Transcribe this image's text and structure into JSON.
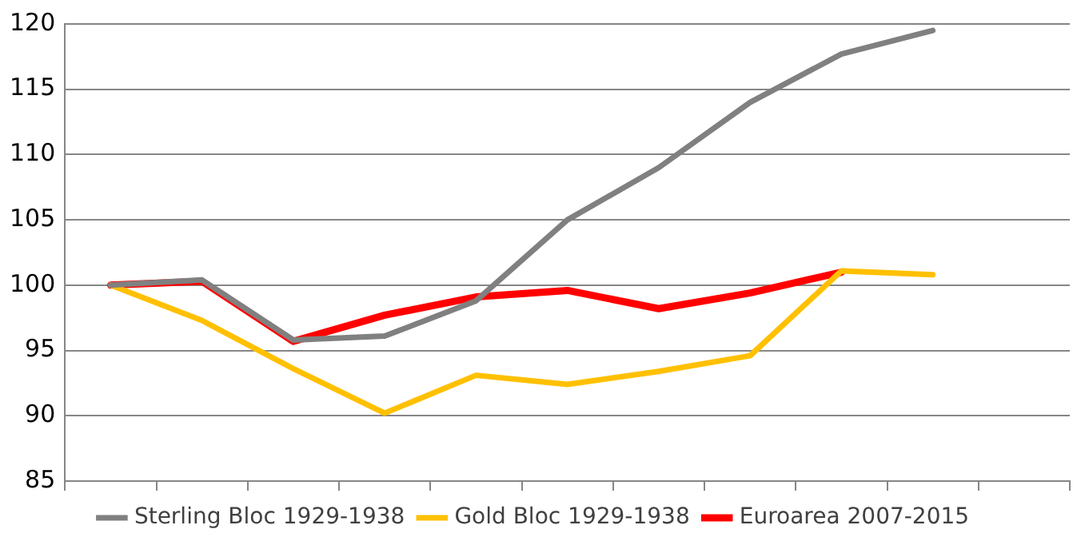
{
  "chart_data": {
    "type": "line",
    "categories": [
      null,
      null,
      null,
      null,
      null,
      null,
      null,
      null,
      null,
      null,
      null
    ],
    "series": [
      {
        "name": "Sterling Bloc 1929-1938",
        "color": "#808080",
        "values": [
          100,
          100.4,
          95.8,
          96.1,
          98.8,
          105,
          109,
          114,
          117.7,
          119.5,
          null
        ]
      },
      {
        "name": "Gold Bloc 1929-1938",
        "color": "#ffc000",
        "values": [
          100,
          97.3,
          93.6,
          90.2,
          93.1,
          92.4,
          93.4,
          94.6,
          101.1,
          100.8,
          null
        ]
      },
      {
        "name": "Euroarea 2007-2015",
        "color": "#ff0000",
        "values": [
          100,
          100.3,
          95.7,
          97.7,
          99.1,
          99.6,
          98.2,
          99.4,
          101,
          null,
          null
        ]
      }
    ],
    "ylim": [
      85,
      120
    ],
    "yticks": [
      85,
      90,
      95,
      100,
      105,
      110,
      115,
      120
    ],
    "grid": "y",
    "legend": "bottom",
    "tick_labels": "y",
    "marker": "none",
    "line_style": "solid"
  }
}
